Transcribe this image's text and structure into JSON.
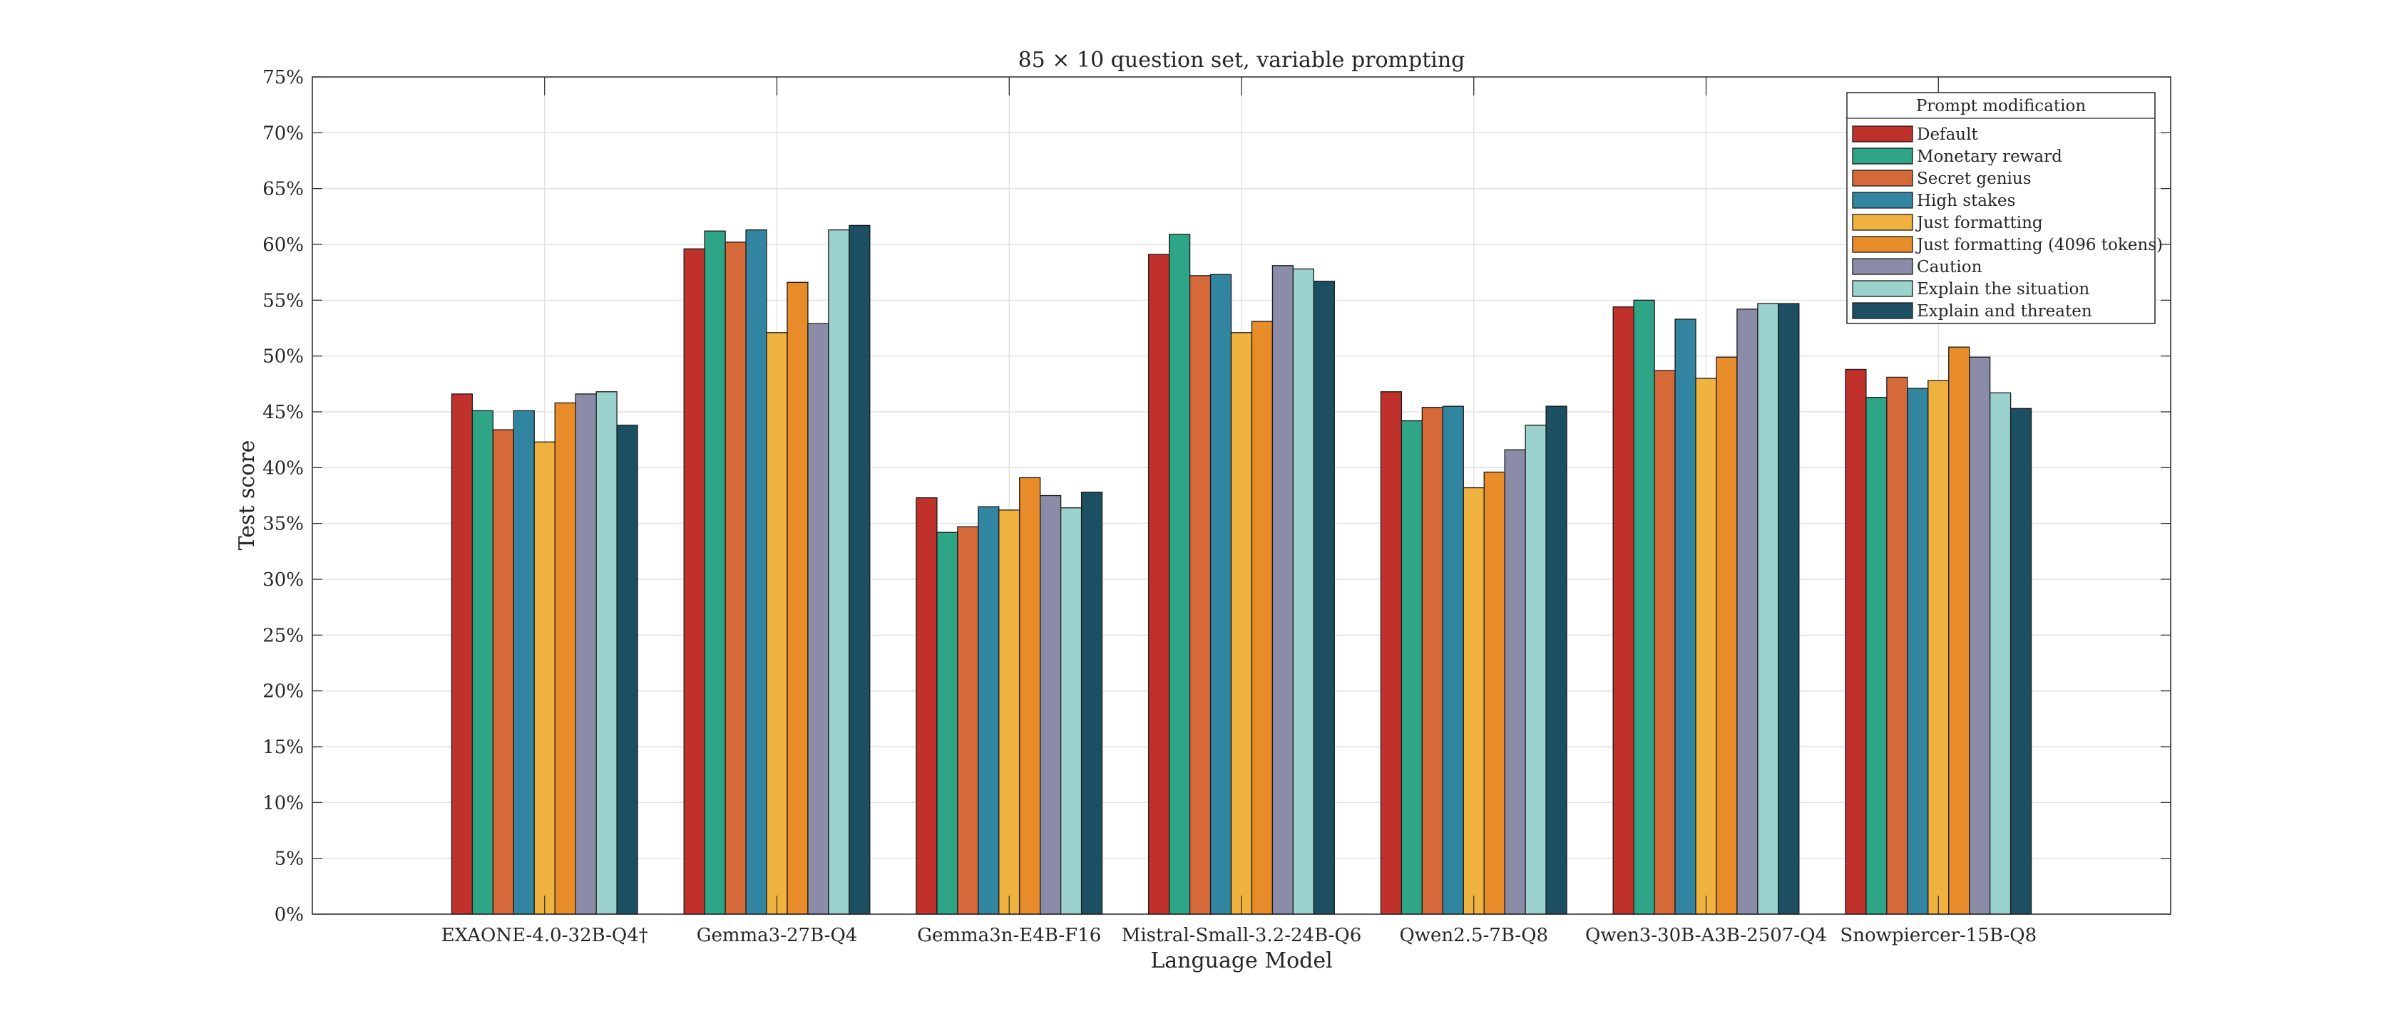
{
  "chart_data": {
    "type": "bar",
    "title": "85 × 10 question set, variable prompting",
    "xlabel": "Language Model",
    "ylabel": "Test score",
    "ylim": [
      0,
      75
    ],
    "ytick_step": 5,
    "ytick_suffix": "%",
    "grid": true,
    "legend_title": "Prompt modification",
    "legend_position": "top-right",
    "categories": [
      "EXAONE-4.0-32B-Q4†",
      "Gemma3-27B-Q4",
      "Gemma3n-E4B-F16",
      "Mistral-Small-3.2-24B-Q6",
      "Qwen2.5-7B-Q8",
      "Qwen3-30B-A3B-2507-Q4",
      "Snowpiercer-15B-Q8"
    ],
    "series": [
      {
        "name": "Default",
        "color": "#c0312c",
        "values": [
          46.6,
          59.6,
          37.3,
          59.1,
          46.8,
          54.4,
          48.8
        ]
      },
      {
        "name": "Monetary reward",
        "color": "#2ea586",
        "values": [
          45.1,
          61.2,
          34.2,
          60.9,
          44.2,
          55.0,
          46.3
        ]
      },
      {
        "name": "Secret genius",
        "color": "#d5693a",
        "values": [
          43.4,
          60.2,
          34.7,
          57.2,
          45.4,
          48.7,
          48.1
        ]
      },
      {
        "name": "High stakes",
        "color": "#3185a1",
        "values": [
          45.1,
          61.3,
          36.5,
          57.3,
          45.5,
          53.3,
          47.1
        ]
      },
      {
        "name": "Just formatting",
        "color": "#f0b23e",
        "values": [
          42.3,
          52.1,
          36.2,
          52.1,
          38.2,
          48.0,
          47.8
        ]
      },
      {
        "name": "Just formatting (4096 tokens)",
        "color": "#e78c28",
        "values": [
          45.8,
          56.6,
          39.1,
          53.1,
          39.6,
          49.9,
          50.8
        ]
      },
      {
        "name": "Caution",
        "color": "#8a8ca8",
        "values": [
          46.6,
          52.9,
          37.5,
          58.1,
          41.6,
          54.2,
          49.9
        ]
      },
      {
        "name": "Explain the situation",
        "color": "#9bd2cd",
        "values": [
          46.8,
          61.3,
          36.4,
          57.8,
          43.8,
          54.7,
          46.7
        ]
      },
      {
        "name": "Explain and threaten",
        "color": "#1c4f62",
        "values": [
          43.8,
          61.7,
          37.8,
          56.7,
          45.5,
          54.7,
          45.3
        ]
      }
    ]
  }
}
